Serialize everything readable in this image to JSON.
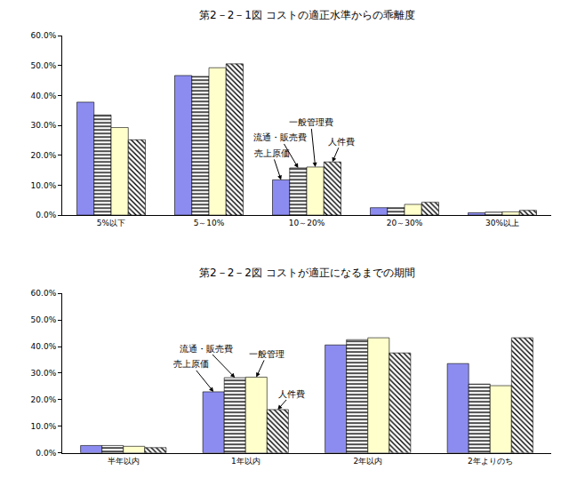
{
  "chart_data": [
    {
      "type": "bar",
      "title": "第2－2－1図 コストの適正水準からの乖離度",
      "categories": [
        "5%以下",
        "5～10%",
        "10～20%",
        "20～30%",
        "30%以上"
      ],
      "series": [
        {
          "name": "売上原価",
          "color": "#8c8cf0",
          "values": [
            37.8,
            46.7,
            11.8,
            2.5,
            0.8
          ]
        },
        {
          "name": "流通・販売費",
          "color": "#ffffff",
          "values": [
            33.5,
            46.4,
            15.8,
            2.5,
            1.0
          ]
        },
        {
          "name": "一般管理費",
          "color": "#ffffcc",
          "values": [
            29.3,
            49.3,
            16.1,
            3.6,
            1.1
          ]
        },
        {
          "name": "人件費",
          "color": "#ffffff",
          "values": [
            25.2,
            50.6,
            17.8,
            4.3,
            1.6
          ]
        }
      ],
      "ylim": [
        0,
        60
      ],
      "yticks": [
        {
          "value": 0,
          "label": "0.0%"
        },
        {
          "value": 10,
          "label": "10.0%"
        },
        {
          "value": 20,
          "label": "20.0%"
        },
        {
          "value": 30,
          "label": "30.0%"
        },
        {
          "value": 40,
          "label": "40.0%"
        },
        {
          "value": 50,
          "label": "50.0%"
        },
        {
          "value": 60,
          "label": "60.0%"
        }
      ],
      "grid": false,
      "annotations": [
        {
          "text": "売上原価",
          "category": "10～20%"
        },
        {
          "text": "流通・販売費",
          "category": "10～20%"
        },
        {
          "text": "一般管理費",
          "category": "10～20%"
        },
        {
          "text": "人件費",
          "category": "10～20%"
        }
      ]
    },
    {
      "type": "bar",
      "title": "第2－2－2図 コストが適正になるまでの期間",
      "categories": [
        "半年以内",
        "1年以内",
        "2年以内",
        "2年よりのち"
      ],
      "series": [
        {
          "name": "売上原価",
          "color": "#8c8cf0",
          "values": [
            2.8,
            23.0,
            40.6,
            33.6
          ]
        },
        {
          "name": "流通・販売費",
          "color": "#ffffff",
          "values": [
            2.8,
            28.3,
            42.6,
            25.9
          ]
        },
        {
          "name": "一般管理",
          "color": "#ffffcc",
          "values": [
            2.5,
            28.5,
            43.3,
            25.3
          ]
        },
        {
          "name": "人件費",
          "color": "#ffffff",
          "values": [
            2.0,
            16.3,
            37.6,
            43.3
          ]
        }
      ],
      "ylim": [
        0,
        60
      ],
      "yticks": [
        {
          "value": 0,
          "label": "0.0%"
        },
        {
          "value": 10,
          "label": "10.0%"
        },
        {
          "value": 20,
          "label": "20.0%"
        },
        {
          "value": 30,
          "label": "30.0%"
        },
        {
          "value": 40,
          "label": "40.0%"
        },
        {
          "value": 50,
          "label": "50.0%"
        },
        {
          "value": 60,
          "label": "60.0%"
        }
      ],
      "grid": false,
      "annotations": [
        {
          "text": "流通・販売費",
          "category": "1年以内"
        },
        {
          "text": "売上原価",
          "category": "1年以内"
        },
        {
          "text": "一般管理",
          "category": "1年以内"
        },
        {
          "text": "人件費",
          "category": "1年以内"
        }
      ]
    }
  ]
}
